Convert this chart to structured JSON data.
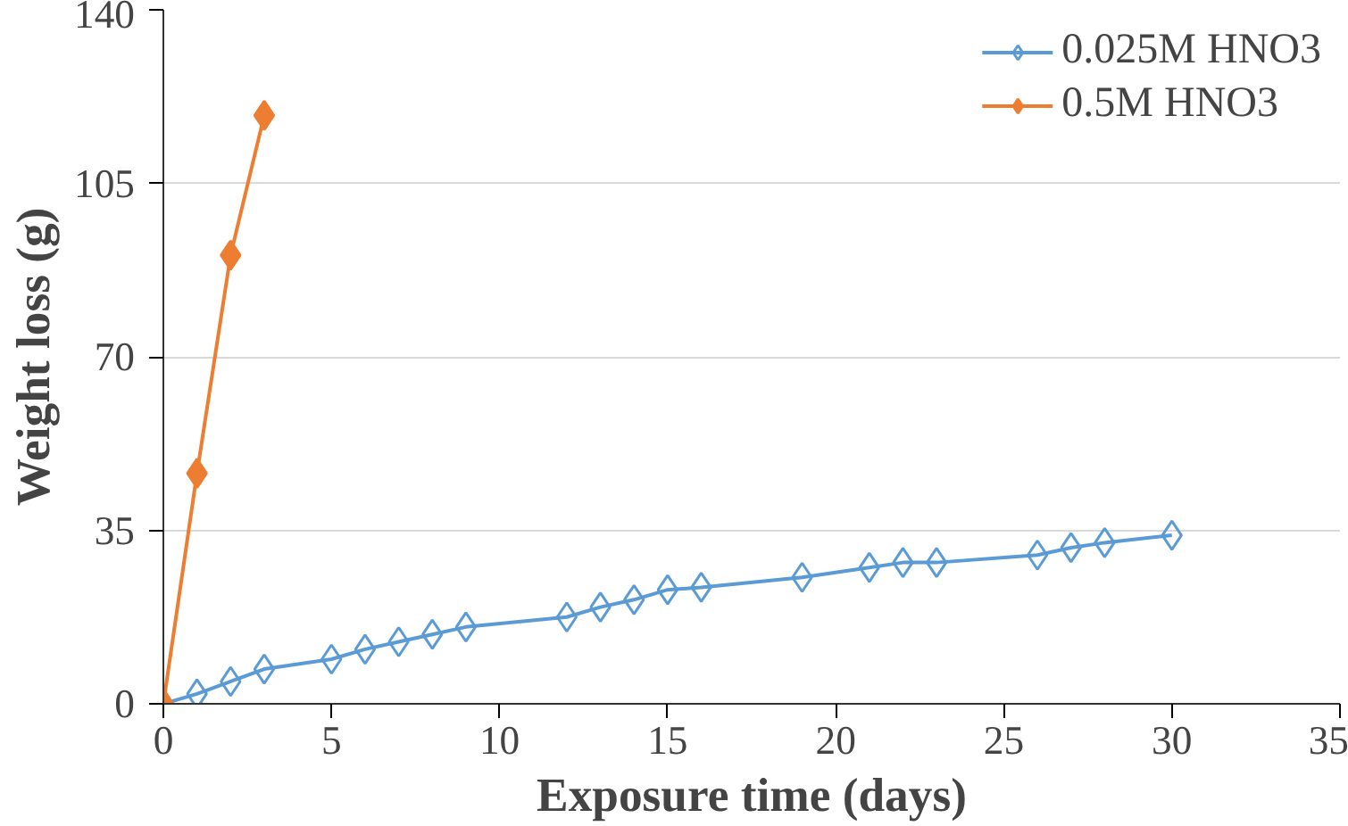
{
  "chart_data": {
    "type": "line",
    "xlabel": "Exposure time (days)",
    "ylabel": "Weight loss (g)",
    "xlim": [
      0,
      35
    ],
    "xticks": [
      0,
      5,
      10,
      15,
      20,
      25,
      30,
      35
    ],
    "ylim": [
      0,
      140
    ],
    "yticks": [
      0,
      35,
      70,
      105,
      140
    ],
    "grid": "y",
    "legend": "top right",
    "marker": "diamond",
    "line_style": "solid",
    "series": [
      {
        "name": "0.025M HNO3",
        "color": "#5b9bd5",
        "x": [
          0,
          1,
          2,
          3,
          5,
          6,
          7,
          8,
          9,
          12,
          13,
          14,
          15,
          16,
          19,
          21,
          22,
          23,
          26,
          27,
          28,
          30
        ],
        "values": [
          0,
          2,
          4.5,
          7,
          9,
          11,
          12.5,
          14,
          15.5,
          17.5,
          19.5,
          21,
          23,
          23.5,
          25.5,
          27.5,
          28.5,
          28.5,
          30,
          31.5,
          32.5,
          34
        ]
      },
      {
        "name": "0.5M HNO3",
        "color": "#ed7d31",
        "x": [
          0,
          1,
          2,
          3
        ],
        "values": [
          0,
          46.5,
          90.5,
          118.7
        ]
      }
    ]
  }
}
